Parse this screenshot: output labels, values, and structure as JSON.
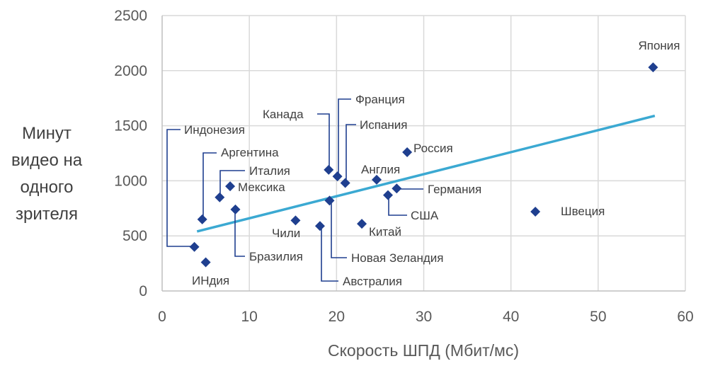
{
  "chart_data": {
    "type": "scatter",
    "xlabel": "Скорость ШПД (Мбит/мс)",
    "ylabel_lines": [
      "Минут",
      "видео на",
      "одного",
      "зрителя"
    ],
    "xlim": [
      0,
      60
    ],
    "ylim": [
      0,
      2500
    ],
    "xticks": [
      "0",
      "10",
      "20",
      "30",
      "40",
      "50",
      "60"
    ],
    "yticks": [
      "0",
      "500",
      "1000",
      "1500",
      "2000",
      "2500"
    ],
    "grid": true,
    "marker_color": "#1F3F8F",
    "trend_color": "#3BA9D2",
    "trendline": {
      "x": [
        4,
        56.5
      ],
      "y": [
        540,
        1590
      ]
    },
    "points": [
      {
        "label": "Индонезия",
        "x": 3.7,
        "y": 400
      },
      {
        "label": "ИНдия",
        "x": 5.0,
        "y": 260
      },
      {
        "label": "Аргентина",
        "x": 4.6,
        "y": 650
      },
      {
        "label": "Италия",
        "x": 6.6,
        "y": 850
      },
      {
        "label": "Мексика",
        "x": 7.8,
        "y": 950
      },
      {
        "label": "Бразилия",
        "x": 8.4,
        "y": 740
      },
      {
        "label": "Чили",
        "x": 15.3,
        "y": 640
      },
      {
        "label": "Австралия",
        "x": 18.1,
        "y": 590
      },
      {
        "label": "Новая Зеландия",
        "x": 19.2,
        "y": 820
      },
      {
        "label": "Канада",
        "x": 19.1,
        "y": 1100
      },
      {
        "label": "Франция",
        "x": 20.1,
        "y": 1040
      },
      {
        "label": "Испания",
        "x": 21.0,
        "y": 980
      },
      {
        "label": "Китай",
        "x": 22.9,
        "y": 610
      },
      {
        "label": "Англия",
        "x": 24.6,
        "y": 1010
      },
      {
        "label": "США",
        "x": 25.9,
        "y": 870
      },
      {
        "label": "Германия",
        "x": 26.9,
        "y": 930
      },
      {
        "label": "Россия",
        "x": 28.1,
        "y": 1260
      },
      {
        "label": "Швеция",
        "x": 42.8,
        "y": 720
      },
      {
        "label": "Япония",
        "x": 56.3,
        "y": 2030
      }
    ]
  }
}
